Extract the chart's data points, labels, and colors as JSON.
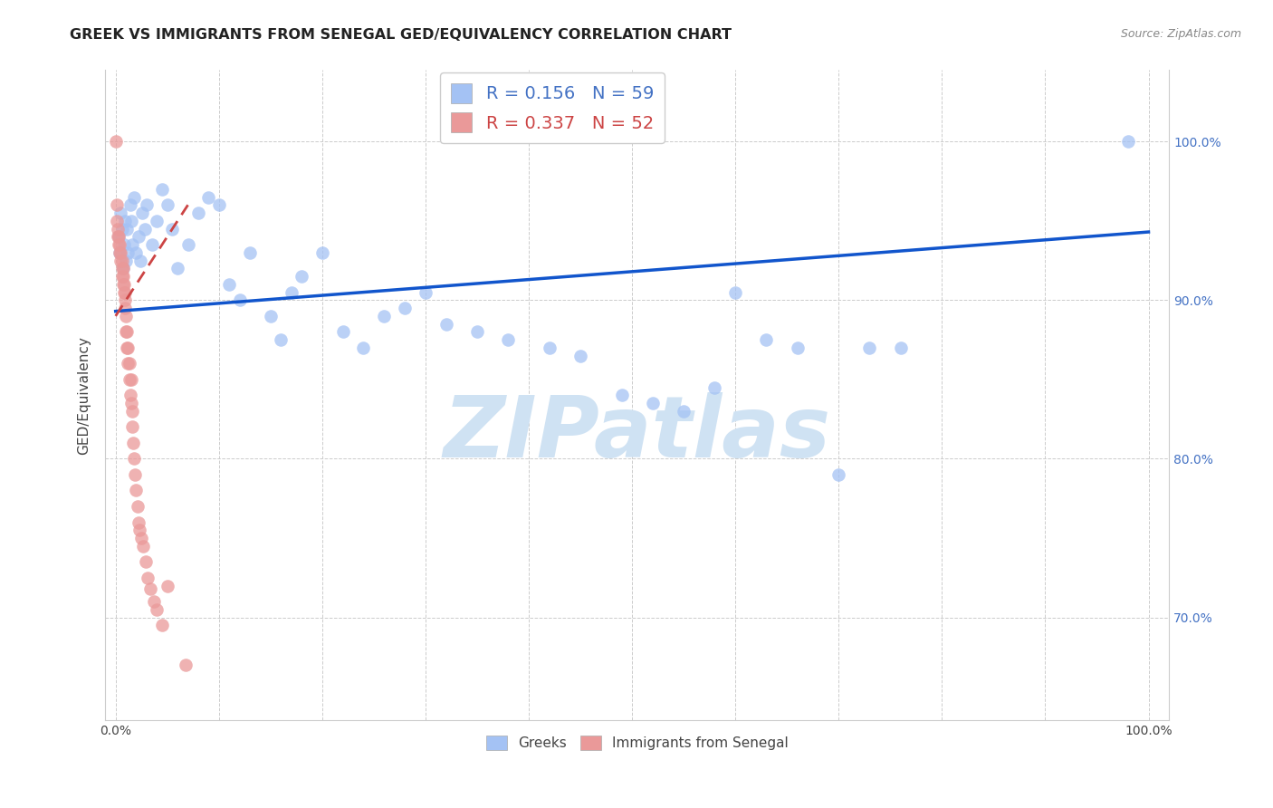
{
  "title": "GREEK VS IMMIGRANTS FROM SENEGAL GED/EQUIVALENCY CORRELATION CHART",
  "source": "Source: ZipAtlas.com",
  "ylabel": "GED/Equivalency",
  "y_tick_labels": [
    "70.0%",
    "80.0%",
    "90.0%",
    "100.0%"
  ],
  "y_tick_positions": [
    0.7,
    0.8,
    0.9,
    1.0
  ],
  "x_tick_positions": [
    0.0,
    0.1,
    0.2,
    0.3,
    0.4,
    0.5,
    0.6,
    0.7,
    0.8,
    0.9,
    1.0
  ],
  "xlim": [
    -0.01,
    1.02
  ],
  "ylim": [
    0.635,
    1.045
  ],
  "blue_r": 0.156,
  "blue_n": 59,
  "pink_r": 0.337,
  "pink_n": 52,
  "blue_color": "#a4c2f4",
  "pink_color": "#ea9999",
  "blue_line_color": "#1155cc",
  "pink_line_color": "#cc4444",
  "watermark_color": "#cfe2f3",
  "blue_x": [
    0.003,
    0.004,
    0.005,
    0.006,
    0.007,
    0.008,
    0.009,
    0.01,
    0.011,
    0.012,
    0.014,
    0.015,
    0.016,
    0.018,
    0.02,
    0.022,
    0.024,
    0.026,
    0.028,
    0.03,
    0.035,
    0.04,
    0.045,
    0.05,
    0.055,
    0.06,
    0.07,
    0.08,
    0.09,
    0.1,
    0.11,
    0.12,
    0.13,
    0.15,
    0.16,
    0.17,
    0.18,
    0.2,
    0.22,
    0.24,
    0.26,
    0.28,
    0.3,
    0.32,
    0.35,
    0.38,
    0.42,
    0.45,
    0.49,
    0.52,
    0.55,
    0.58,
    0.6,
    0.63,
    0.66,
    0.7,
    0.73,
    0.76,
    0.98
  ],
  "blue_y": [
    0.94,
    0.93,
    0.955,
    0.945,
    0.92,
    0.935,
    0.95,
    0.925,
    0.945,
    0.93,
    0.96,
    0.95,
    0.935,
    0.965,
    0.93,
    0.94,
    0.925,
    0.955,
    0.945,
    0.96,
    0.935,
    0.95,
    0.97,
    0.96,
    0.945,
    0.92,
    0.935,
    0.955,
    0.965,
    0.96,
    0.91,
    0.9,
    0.93,
    0.89,
    0.875,
    0.905,
    0.915,
    0.93,
    0.88,
    0.87,
    0.89,
    0.895,
    0.905,
    0.885,
    0.88,
    0.875,
    0.87,
    0.865,
    0.84,
    0.835,
    0.83,
    0.845,
    0.905,
    0.875,
    0.87,
    0.79,
    0.87,
    0.87,
    1.0
  ],
  "pink_x": [
    0.0005,
    0.001,
    0.0015,
    0.002,
    0.002,
    0.003,
    0.003,
    0.004,
    0.004,
    0.005,
    0.005,
    0.006,
    0.006,
    0.006,
    0.007,
    0.007,
    0.007,
    0.008,
    0.008,
    0.009,
    0.009,
    0.009,
    0.01,
    0.01,
    0.011,
    0.011,
    0.012,
    0.012,
    0.013,
    0.013,
    0.014,
    0.015,
    0.015,
    0.016,
    0.016,
    0.017,
    0.018,
    0.019,
    0.02,
    0.021,
    0.022,
    0.023,
    0.025,
    0.027,
    0.029,
    0.031,
    0.034,
    0.037,
    0.04,
    0.045,
    0.05,
    0.068
  ],
  "pink_y": [
    1.0,
    0.96,
    0.95,
    0.94,
    0.945,
    0.935,
    0.94,
    0.93,
    0.935,
    0.925,
    0.93,
    0.92,
    0.915,
    0.925,
    0.91,
    0.915,
    0.92,
    0.905,
    0.91,
    0.9,
    0.895,
    0.905,
    0.88,
    0.89,
    0.87,
    0.88,
    0.86,
    0.87,
    0.85,
    0.86,
    0.84,
    0.835,
    0.85,
    0.82,
    0.83,
    0.81,
    0.8,
    0.79,
    0.78,
    0.77,
    0.76,
    0.755,
    0.75,
    0.745,
    0.735,
    0.725,
    0.718,
    0.71,
    0.705,
    0.695,
    0.72,
    0.67
  ],
  "blue_line_x": [
    0.0,
    1.0
  ],
  "blue_line_y": [
    0.893,
    0.943
  ],
  "pink_line_x": [
    0.0,
    0.07
  ],
  "pink_line_y": [
    0.89,
    0.96
  ]
}
